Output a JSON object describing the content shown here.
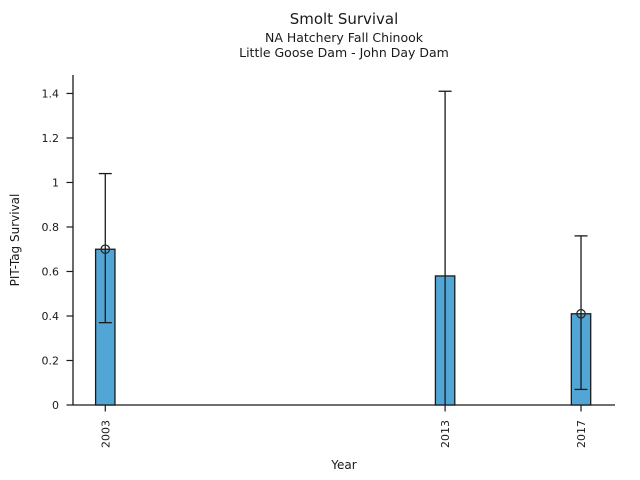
{
  "chart_data": {
    "type": "bar",
    "title": "Smolt Survival",
    "subtitles": [
      "NA Hatchery Fall Chinook",
      "Little Goose Dam - John Day Dam"
    ],
    "xlabel": "Year",
    "ylabel": "PIT-Tag Survival",
    "categories": [
      "2003",
      "2013",
      "2017"
    ],
    "x": [
      2003,
      2013,
      2017
    ],
    "values": [
      0.7,
      0.58,
      0.41
    ],
    "error_low": [
      0.37,
      0.0,
      0.07
    ],
    "error_high": [
      1.04,
      1.41,
      0.76
    ],
    "point_markers": [
      0.7,
      null,
      0.41
    ],
    "bar_width_years": 0.57,
    "xlim": [
      2002.05,
      2018.0
    ],
    "ylim": [
      0,
      1.483
    ],
    "yticks": [
      0,
      0.2,
      0.4,
      0.6,
      0.8,
      1.0,
      1.2,
      1.4
    ],
    "ytick_labels": [
      "0",
      "0.2",
      "0.4",
      "0.6",
      "0.8",
      "1",
      "1.2",
      "1.4"
    ],
    "grid": false,
    "legend": null,
    "colors": {
      "bar_fill": "#52a6d6",
      "bar_edge": "#1a1a1a",
      "error_bar": "#1a1a1a",
      "marker_edge": "#2a2a2a",
      "axis": "#1a1a1a",
      "text": "#1a1a1a",
      "background": "#ffffff"
    }
  }
}
